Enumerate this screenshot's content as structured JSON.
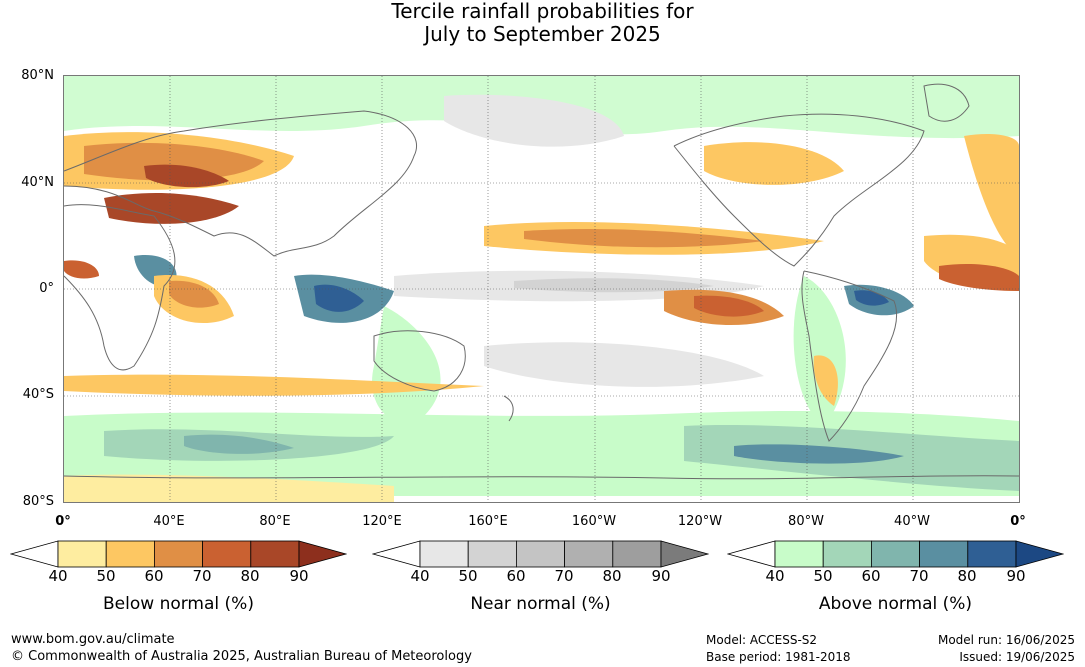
{
  "title_line1": "Tercile rainfall probabilities for",
  "title_line2": "July to September 2025",
  "lat_labels": [
    "80°N",
    "40°N",
    "0°",
    "40°S",
    "80°S"
  ],
  "lon_labels": [
    "0°",
    "40°E",
    "80°E",
    "120°E",
    "160°E",
    "160°W",
    "120°W",
    "80°W",
    "40°W",
    "0°"
  ],
  "colorbars": [
    {
      "title": "Below normal (%)",
      "ticks": [
        "40",
        "50",
        "60",
        "70",
        "80",
        "90"
      ],
      "colors": [
        "#ffffff",
        "#feeda0",
        "#fdc762",
        "#e08f45",
        "#ca6131",
        "#a94728",
        "#8d2f1d"
      ]
    },
    {
      "title": "Near normal (%)",
      "ticks": [
        "40",
        "50",
        "60",
        "70",
        "80",
        "90"
      ],
      "colors": [
        "#ffffff",
        "#e7e7e7",
        "#d3d3d3",
        "#c4c4c4",
        "#b0b0b0",
        "#9e9e9e",
        "#7b7b7b"
      ]
    },
    {
      "title": "Above normal (%)",
      "ticks": [
        "40",
        "50",
        "60",
        "70",
        "80",
        "90"
      ],
      "colors": [
        "#ffffff",
        "#c8fcc9",
        "#a3d6b8",
        "#80b5ad",
        "#5a8fa1",
        "#2f5f94",
        "#1c4883"
      ]
    }
  ],
  "footer": {
    "website": "www.bom.gov.au/climate",
    "copyright": "© Commonwealth of Australia 2025, Australian Bureau of Meteorology",
    "model": "Model: ACCESS-S2",
    "base_period": "Base period: 1981-2018",
    "model_run": "Model run: 16/06/2025",
    "issued": "Issued: 19/06/2025"
  }
}
